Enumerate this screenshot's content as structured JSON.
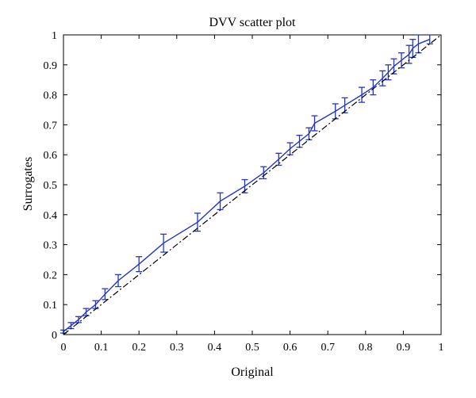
{
  "chart_data": {
    "type": "line",
    "title": "DVV scatter plot",
    "xlabel": "Original",
    "ylabel": "Surrogates",
    "xlim": [
      0,
      1
    ],
    "ylim": [
      0,
      1
    ],
    "xticks": [
      "0",
      "0.1",
      "0.2",
      "0.3",
      "0.4",
      "0.5",
      "0.6",
      "0.7",
      "0.8",
      "0.9",
      "1"
    ],
    "yticks": [
      "0",
      "0.1",
      "0.2",
      "0.3",
      "0.4",
      "0.5",
      "0.6",
      "0.7",
      "0.8",
      "0.9",
      "1"
    ],
    "grid": false,
    "colors": {
      "series": "#2436c8",
      "reference": "#000000",
      "axis": "#000000"
    },
    "series": [
      {
        "style": "solid-with-errorbars",
        "x": [
          0.0,
          0.02,
          0.04,
          0.06,
          0.085,
          0.11,
          0.145,
          0.2,
          0.265,
          0.355,
          0.415,
          0.48,
          0.53,
          0.57,
          0.6,
          0.625,
          0.65,
          0.665,
          0.72,
          0.745,
          0.79,
          0.82,
          0.845,
          0.86,
          0.875,
          0.895,
          0.915,
          0.925,
          0.94,
          0.97
        ],
        "y": [
          0.01,
          0.03,
          0.05,
          0.075,
          0.1,
          0.135,
          0.18,
          0.235,
          0.305,
          0.375,
          0.445,
          0.495,
          0.54,
          0.585,
          0.62,
          0.645,
          0.67,
          0.705,
          0.745,
          0.765,
          0.8,
          0.825,
          0.855,
          0.875,
          0.895,
          0.915,
          0.935,
          0.955,
          0.97,
          0.985
        ],
        "err": [
          0.005,
          0.01,
          0.01,
          0.012,
          0.013,
          0.018,
          0.02,
          0.025,
          0.03,
          0.03,
          0.028,
          0.022,
          0.02,
          0.02,
          0.02,
          0.02,
          0.02,
          0.025,
          0.025,
          0.025,
          0.025,
          0.025,
          0.025,
          0.025,
          0.025,
          0.025,
          0.03,
          0.03,
          0.03,
          0.015
        ]
      },
      {
        "style": "dash-dot",
        "x": [
          0,
          1
        ],
        "y": [
          0,
          1
        ]
      }
    ]
  }
}
